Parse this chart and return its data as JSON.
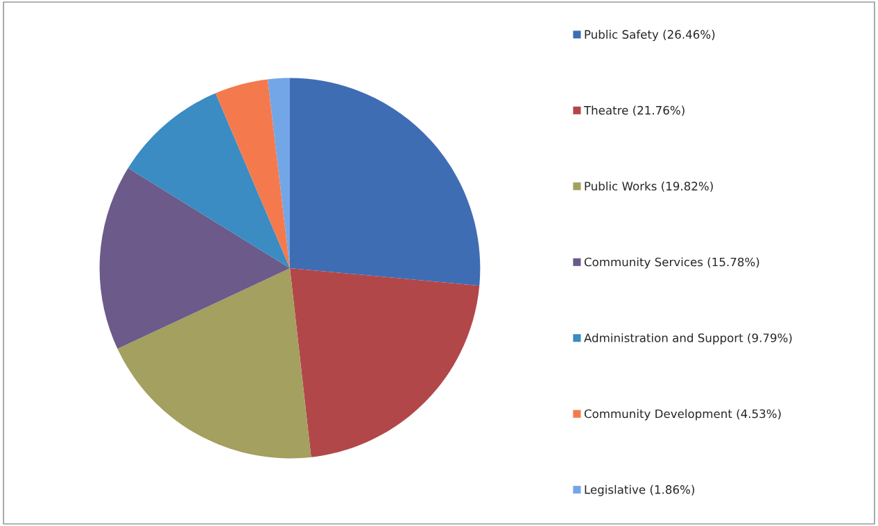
{
  "chart_data": {
    "type": "pie",
    "categories": [
      "Public Safety (26.46%)",
      "Theatre (21.76%)",
      "Public Works (19.82%)",
      "Community Services (15.78%)",
      "Administration and Support (9.79%)",
      "Community Development (4.53%)",
      "Legislative (1.86%)"
    ],
    "values": [
      26.46,
      21.76,
      19.82,
      15.78,
      9.79,
      4.53,
      1.86
    ],
    "colors": [
      "#3f6db3",
      "#b2474a",
      "#a3a060",
      "#6b5a8a",
      "#3a8cc2",
      "#f47a4e",
      "#73a6e6"
    ],
    "legend": "right"
  }
}
